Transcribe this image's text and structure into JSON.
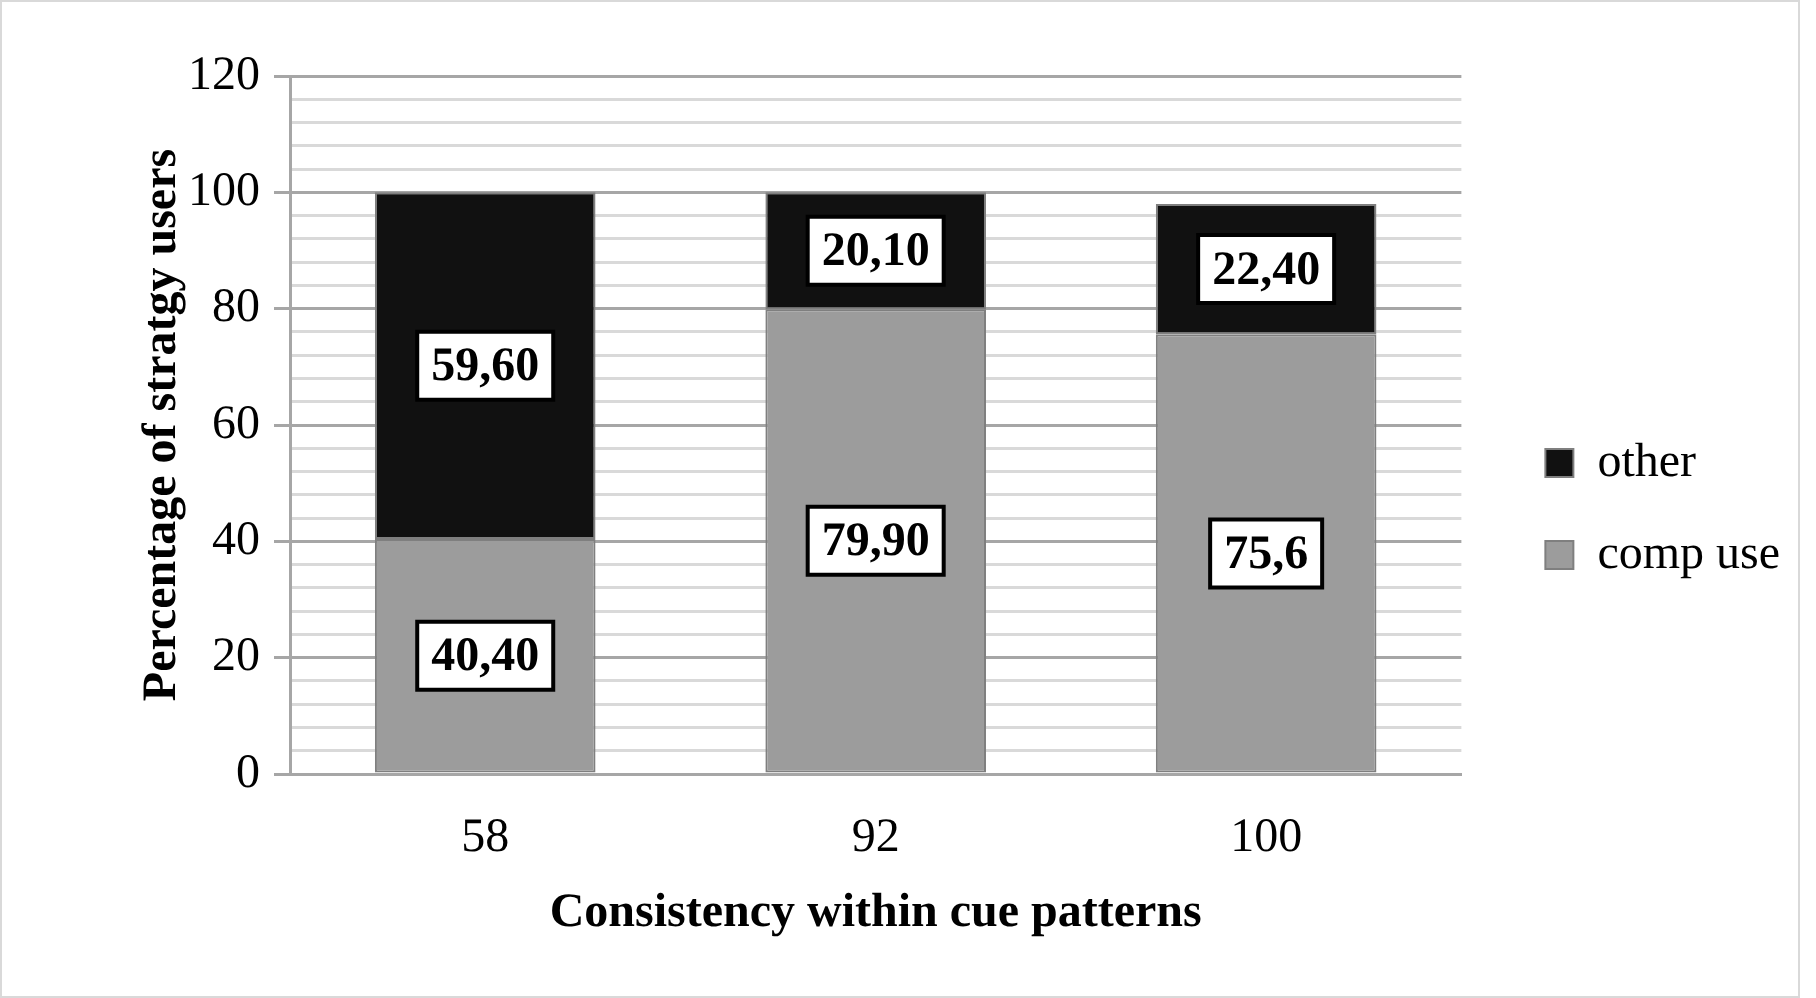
{
  "chart_data": {
    "type": "bar",
    "stacked": true,
    "categories": [
      "58",
      "92",
      "100"
    ],
    "xlabel": "Consistency within cue patterns",
    "ylabel": "Percentage of stratgy users",
    "series": [
      {
        "name": "comp use",
        "color": "#9c9c9c",
        "values": [
          40.4,
          79.9,
          75.6
        ],
        "value_labels": [
          "40,40",
          "79,90",
          "75,6"
        ]
      },
      {
        "name": "other",
        "color": "#111111",
        "values": [
          59.6,
          20.1,
          22.4
        ],
        "value_labels": [
          "59,60",
          "20,10",
          "22,40"
        ]
      }
    ],
    "ylim": [
      0,
      120
    ],
    "yticks": [
      0,
      {
        "value": 4,
        "label": null
      },
      {
        "value": 8,
        "label": null
      },
      {
        "value": 12,
        "label": null
      },
      {
        "value": 16,
        "label": null
      },
      20,
      {
        "value": 24,
        "label": null
      },
      {
        "value": 28,
        "label": null
      },
      {
        "value": 32,
        "label": null
      },
      {
        "value": 36,
        "label": null
      },
      40,
      {
        "value": 44,
        "label": null
      },
      {
        "value": 48,
        "label": null
      },
      {
        "value": 52,
        "label": null
      },
      {
        "value": 56,
        "label": null
      },
      60,
      {
        "value": 64,
        "label": null
      },
      {
        "value": 68,
        "label": null
      },
      {
        "value": 72,
        "label": null
      },
      {
        "value": 76,
        "label": null
      },
      80,
      {
        "value": 84,
        "label": null
      },
      {
        "value": 88,
        "label": null
      },
      {
        "value": 92,
        "label": null
      },
      {
        "value": 96,
        "label": null
      },
      100,
      {
        "value": 104,
        "label": null
      },
      {
        "value": 108,
        "label": null
      },
      {
        "value": 112,
        "label": null
      },
      {
        "value": 116,
        "label": null
      },
      120
    ],
    "grid": "y",
    "legend": "right"
  }
}
